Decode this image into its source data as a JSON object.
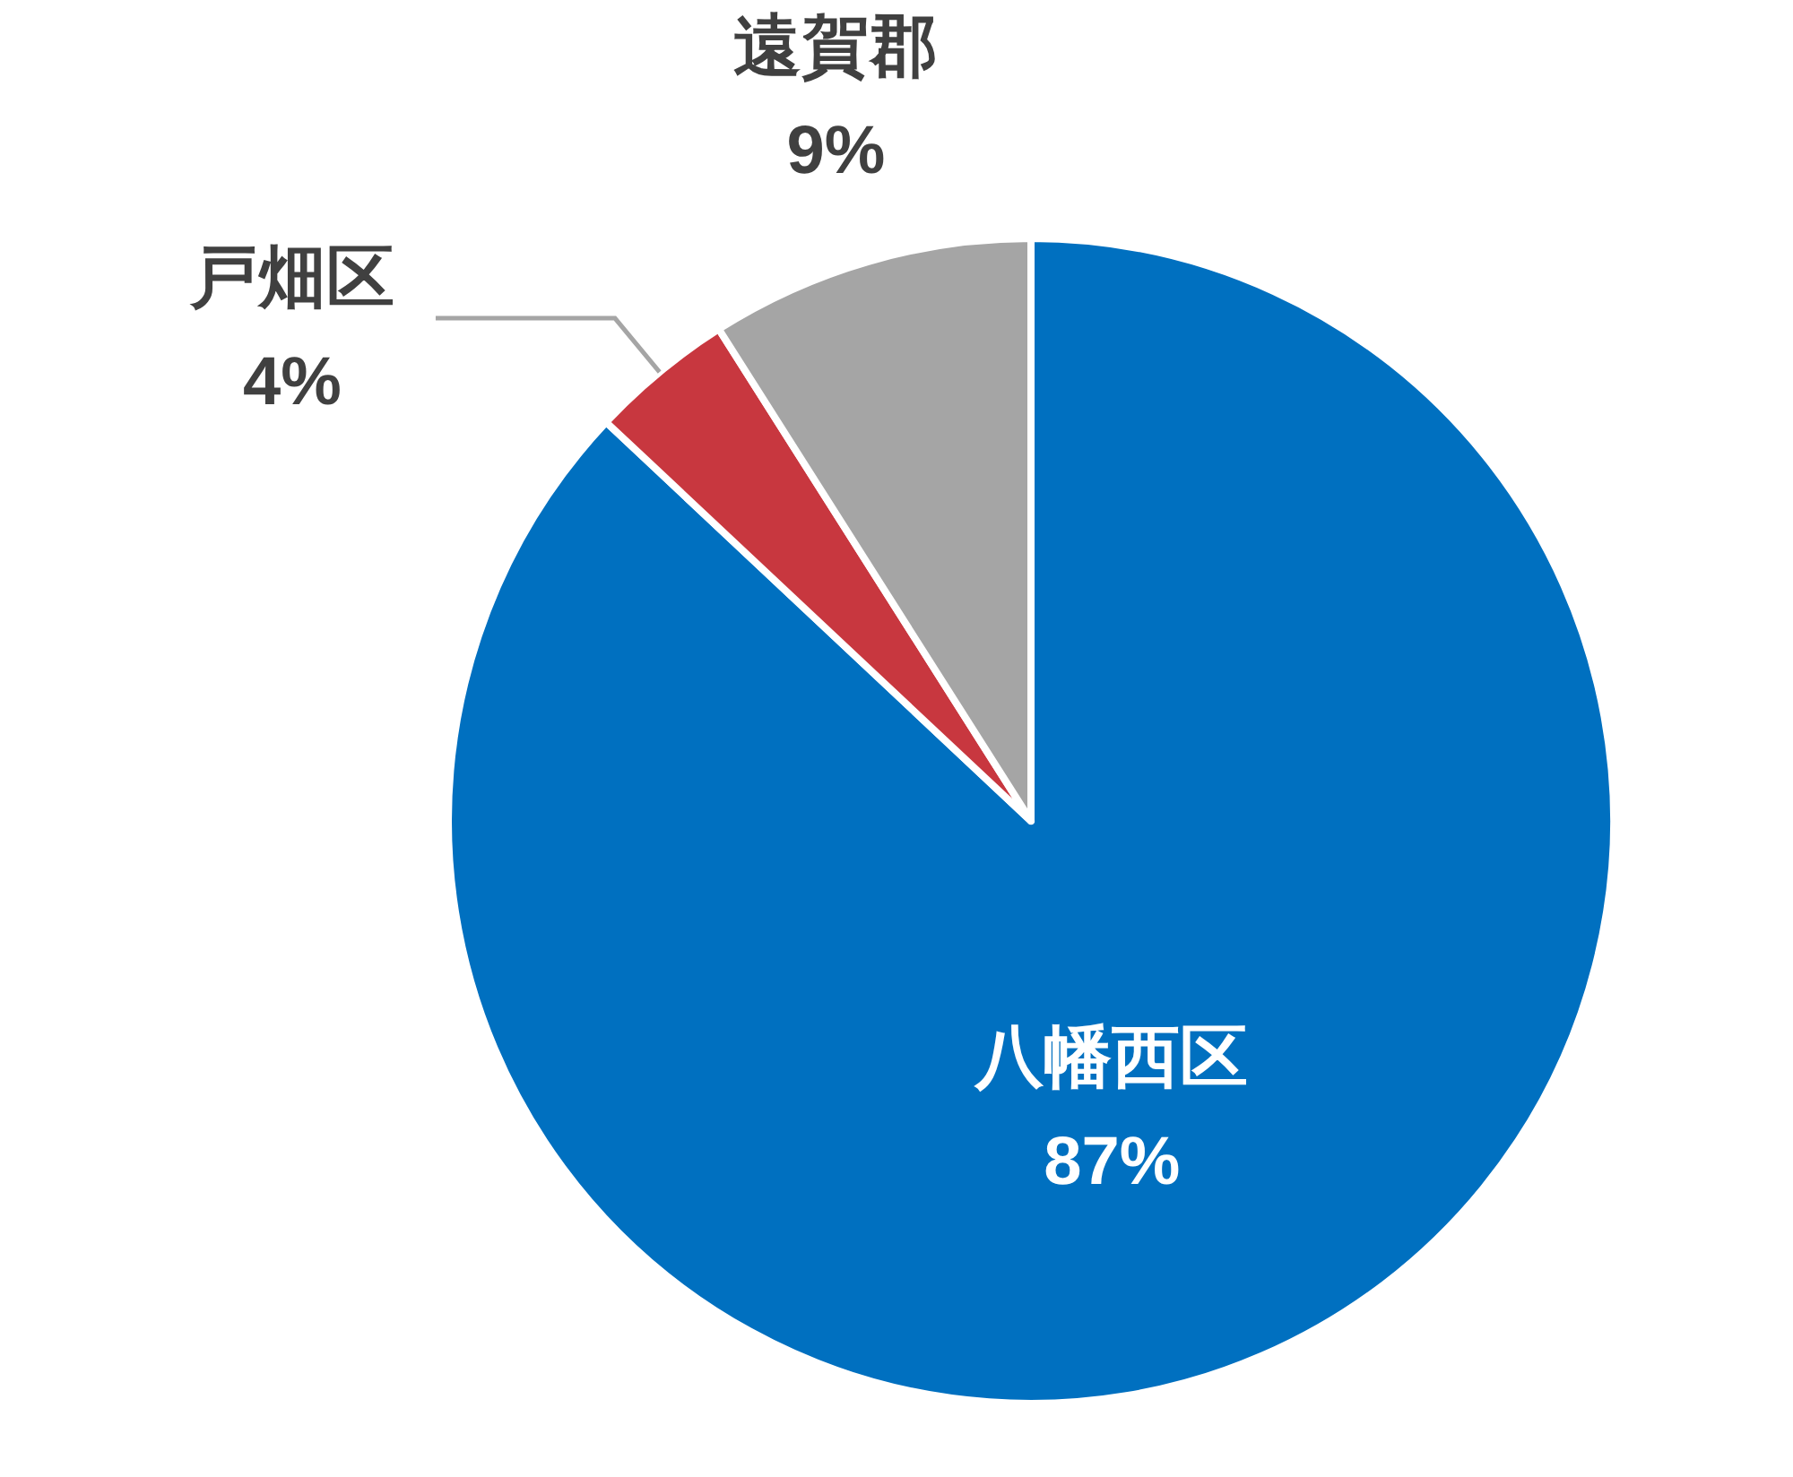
{
  "chart_data": {
    "type": "pie",
    "categories": [
      "八幡西区",
      "戸畑区",
      "遠賀郡"
    ],
    "values": [
      87,
      4,
      9
    ],
    "colors": [
      "#0070c0",
      "#c8373f",
      "#a5a5a5"
    ],
    "value_labels": [
      "87%",
      "4%",
      "9%"
    ]
  }
}
